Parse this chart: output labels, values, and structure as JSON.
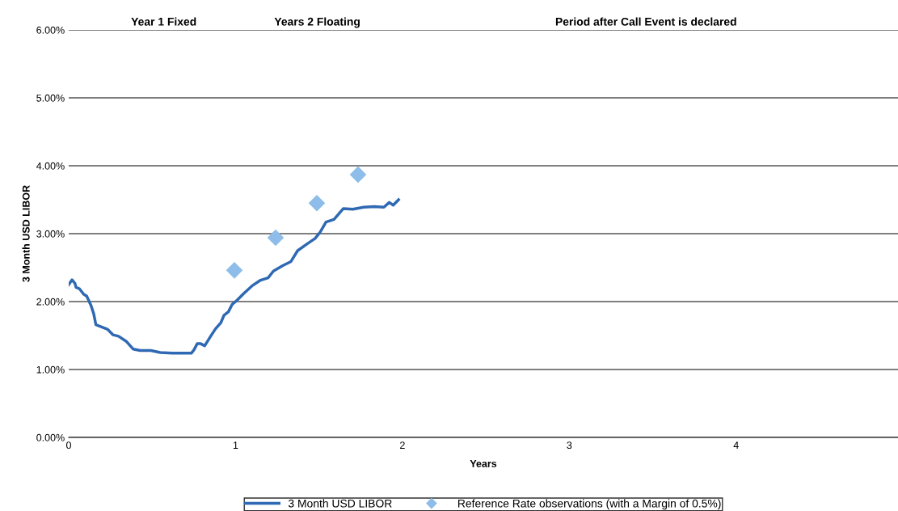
{
  "chart_data": {
    "type": "line",
    "xlabel": "Years",
    "ylabel": "3 Month USD LIBOR",
    "annotations": [
      "Year 1 Fixed",
      "Years 2 Floating",
      "Period after Call Event is declared"
    ],
    "xlim": [
      0,
      4.97
    ],
    "xticks": [
      0,
      1,
      2,
      3,
      4
    ],
    "ylim": [
      0,
      6
    ],
    "yticks": [
      {
        "value": 0,
        "label": "0.00%"
      },
      {
        "value": 1,
        "label": "1.00%"
      },
      {
        "value": 2,
        "label": "2.00%"
      },
      {
        "value": 3,
        "label": "3.00%"
      },
      {
        "value": 4,
        "label": "4.00%"
      },
      {
        "value": 5,
        "label": "5.00%"
      },
      {
        "value": 6,
        "label": "6.00%"
      }
    ],
    "grid": "y",
    "legend": "bottom",
    "series": [
      {
        "name": "3 Month USD LIBOR",
        "color": "#2f69b3",
        "marker": "none",
        "line_style": "solid",
        "x": [
          0,
          0.02,
          0.037,
          0.044,
          0.064,
          0.089,
          0.108,
          0.134,
          0.15,
          0.163,
          0.194,
          0.234,
          0.266,
          0.299,
          0.347,
          0.387,
          0.428,
          0.492,
          0.549,
          0.621,
          0.735,
          0.751,
          0.77,
          0.791,
          0.815,
          0.856,
          0.88,
          0.912,
          0.931,
          0.957,
          0.98,
          1.009,
          1.049,
          1.098,
          1.146,
          1.195,
          1.227,
          1.283,
          1.332,
          1.372,
          1.429,
          1.477,
          1.509,
          1.542,
          1.59,
          1.646,
          1.703,
          1.768,
          1.832,
          1.889,
          1.921,
          1.945,
          1.977
        ],
        "values": [
          2.25,
          2.32,
          2.27,
          2.21,
          2.19,
          2.11,
          2.08,
          1.94,
          1.82,
          1.66,
          1.63,
          1.59,
          1.51,
          1.49,
          1.41,
          1.3,
          1.28,
          1.28,
          1.25,
          1.24,
          1.24,
          1.29,
          1.38,
          1.38,
          1.35,
          1.51,
          1.6,
          1.69,
          1.8,
          1.85,
          1.96,
          2.02,
          2.12,
          2.23,
          2.31,
          2.35,
          2.45,
          2.53,
          2.59,
          2.75,
          2.85,
          2.93,
          3.03,
          3.17,
          3.21,
          3.37,
          3.36,
          3.39,
          3.4,
          3.39,
          3.46,
          3.42,
          3.5
        ]
      },
      {
        "name": "Reference Rate observations (with a Margin of 0.5%)",
        "type": "scatter",
        "color": "#8dbde8",
        "marker": "diamond",
        "x": [
          0.993,
          1.24,
          1.487,
          1.734
        ],
        "values": [
          2.46,
          2.94,
          3.45,
          3.87
        ]
      }
    ]
  }
}
